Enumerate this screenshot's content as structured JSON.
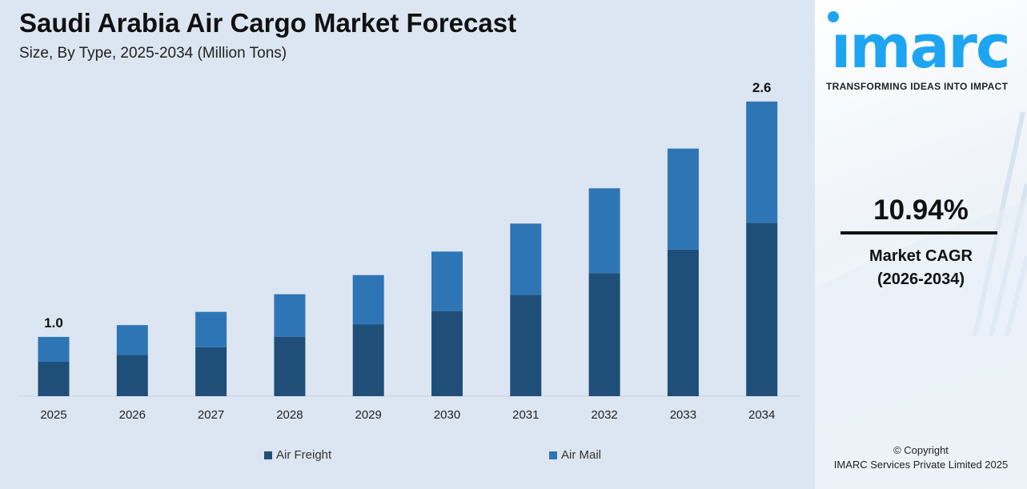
{
  "header": {
    "title": "Saudi Arabia Air Cargo Market Forecast",
    "subtitle": "Size, By Type, 2025-2034 (Million Tons)"
  },
  "colors": {
    "background": "#dce6f2",
    "air_freight": "#1f4e79",
    "air_mail": "#2e75b6",
    "brand": "#1ea5f2"
  },
  "chart_data": {
    "type": "bar",
    "stacked": true,
    "title": "Saudi Arabia Air Cargo Market Forecast",
    "subtitle": "Size, By Type, 2025-2034 (Million Tons)",
    "categories": [
      "2025",
      "2026",
      "2027",
      "2028",
      "2029",
      "2030",
      "2031",
      "2032",
      "2033",
      "2034"
    ],
    "series": [
      {
        "name": "Air Freight",
        "color": "#1f4e79",
        "values": [
          0.58,
          0.63,
          0.68,
          0.75,
          0.84,
          0.93,
          1.04,
          1.19,
          1.35,
          1.53
        ]
      },
      {
        "name": "Air Mail",
        "color": "#2e75b6",
        "values": [
          0.42,
          0.45,
          0.49,
          0.54,
          0.58,
          0.65,
          0.73,
          0.82,
          0.93,
          1.07
        ]
      }
    ],
    "data_labels": [
      {
        "category": "2025",
        "text": "1.0"
      },
      {
        "category": "2034",
        "text": "2.6"
      }
    ],
    "grid": false,
    "legend": "bottom"
  },
  "side": {
    "logo": "imarc",
    "tagline": "TRANSFORMING IDEAS INTO IMPACT",
    "cagr_value": "10.94%",
    "cagr_label": "Market CAGR",
    "cagr_period": "(2026-2034)",
    "copyright": "© Copyright",
    "company": "IMARC Services Private Limited 2025"
  }
}
